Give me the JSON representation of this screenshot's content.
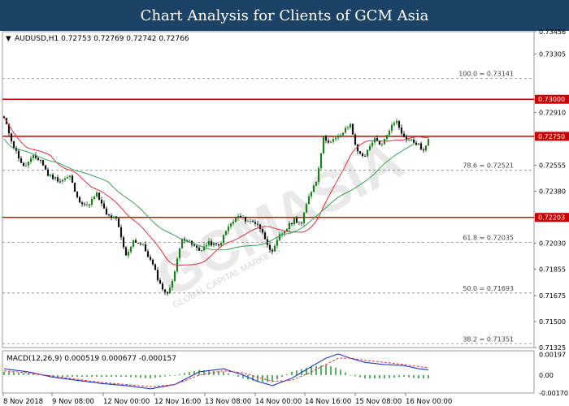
{
  "header": {
    "title": "Chart Analysis for Clients of GCM Asia"
  },
  "colors": {
    "bull": "#1e7d1e",
    "bear": "#111111",
    "ma_fast": "#e0303e",
    "ma_slow": "#3aa35a",
    "level_line": "#cc0000",
    "fib_line": "#888888",
    "macd_line": "#1f33d6",
    "signal_line": "#e0303e",
    "histogram": "#2e9e3a"
  },
  "watermark": {
    "text": "GCMASIA",
    "sub": "GLOBAL CAPITAL MARKETS"
  },
  "chart_data": {
    "type": "candlestick",
    "title": "AUDUSD,H1  0.72753 0.72769 0.72742 0.72766",
    "price_axis": {
      "ylim": [
        0.71325,
        0.73456
      ],
      "ticks": [
        "0.73456",
        "0.73305",
        "0.73000",
        "0.72910",
        "0.72750",
        "0.72555",
        "0.72380",
        "0.72203",
        "0.72030",
        "0.71855",
        "0.71675",
        "0.71500",
        "0.71325"
      ]
    },
    "time_labels": [
      "8 Nov 2018",
      "9 Nov 08:00",
      "12 Nov 00:00",
      "12 Nov 16:00",
      "13 Nov 08:00",
      "14 Nov 00:00",
      "14 Nov 16:00",
      "15 Nov 08:00",
      "16 Nov 00:00"
    ],
    "key_levels": [
      {
        "label": "0.73000",
        "value": 0.73
      },
      {
        "label": "0.72750",
        "value": 0.7275
      },
      {
        "label": "0.72203",
        "value": 0.72203
      }
    ],
    "fib_levels": [
      {
        "label": "100.0 = 0.73141",
        "value": 0.73141
      },
      {
        "label": "78.6 = 0.72521",
        "value": 0.72521
      },
      {
        "label": "61.8 = 0.72035",
        "value": 0.72035
      },
      {
        "label": "50.0 = 0.71693",
        "value": 0.71693
      },
      {
        "label": "38.2 = 0.71351",
        "value": 0.71351
      }
    ],
    "anchors": [
      [
        0,
        0.7287
      ],
      [
        4,
        0.7268
      ],
      [
        8,
        0.7254
      ],
      [
        12,
        0.7261
      ],
      [
        15,
        0.7259
      ],
      [
        18,
        0.7249
      ],
      [
        23,
        0.7245
      ],
      [
        27,
        0.7248
      ],
      [
        30,
        0.7233
      ],
      [
        34,
        0.7228
      ],
      [
        38,
        0.7236
      ],
      [
        42,
        0.7222
      ],
      [
        46,
        0.7219
      ],
      [
        50,
        0.7194
      ],
      [
        53,
        0.7205
      ],
      [
        57,
        0.7201
      ],
      [
        61,
        0.7188
      ],
      [
        64,
        0.7175
      ],
      [
        67,
        0.7168
      ],
      [
        70,
        0.7184
      ],
      [
        73,
        0.7207
      ],
      [
        77,
        0.7202
      ],
      [
        80,
        0.7198
      ],
      [
        84,
        0.7203
      ],
      [
        88,
        0.7201
      ],
      [
        92,
        0.7214
      ],
      [
        96,
        0.7221
      ],
      [
        100,
        0.7218
      ],
      [
        104,
        0.7216
      ],
      [
        108,
        0.7203
      ],
      [
        110,
        0.7196
      ],
      [
        113,
        0.7208
      ],
      [
        116,
        0.7213
      ],
      [
        119,
        0.7219
      ],
      [
        122,
        0.7216
      ],
      [
        125,
        0.7235
      ],
      [
        128,
        0.7245
      ],
      [
        131,
        0.7274
      ],
      [
        134,
        0.7271
      ],
      [
        138,
        0.7276
      ],
      [
        142,
        0.7283
      ],
      [
        145,
        0.7264
      ],
      [
        148,
        0.7262
      ],
      [
        152,
        0.7273
      ],
      [
        155,
        0.7269
      ],
      [
        158,
        0.728
      ],
      [
        161,
        0.7286
      ],
      [
        164,
        0.7274
      ],
      [
        167,
        0.7272
      ],
      [
        170,
        0.7269
      ],
      [
        172,
        0.7265
      ],
      [
        174,
        0.7272
      ]
    ],
    "macd": {
      "label": "MACD(12,26,9)  0.000519  0.000677  -0.000157",
      "ylim": [
        -0.0017,
        0.0023
      ],
      "ticks": [
        "0.00197",
        "0.00",
        "-0.00170"
      ],
      "line": [
        [
          0,
          0.0006
        ],
        [
          10,
          0.0003
        ],
        [
          20,
          -0.0002
        ],
        [
          30,
          -0.0005
        ],
        [
          40,
          -0.0008
        ],
        [
          50,
          -0.001
        ],
        [
          60,
          -0.0013
        ],
        [
          70,
          -0.0009
        ],
        [
          80,
          0.0003
        ],
        [
          90,
          0.0006
        ],
        [
          98,
          0.0
        ],
        [
          104,
          -0.0006
        ],
        [
          110,
          -0.001
        ],
        [
          118,
          -0.0003
        ],
        [
          126,
          0.0008
        ],
        [
          132,
          0.0016
        ],
        [
          137,
          0.002
        ],
        [
          142,
          0.0016
        ],
        [
          148,
          0.0012
        ],
        [
          156,
          0.001
        ],
        [
          164,
          0.0009
        ],
        [
          170,
          0.0006
        ],
        [
          174,
          0.0005
        ]
      ],
      "signal": [
        [
          0,
          0.0004
        ],
        [
          10,
          0.0002
        ],
        [
          20,
          -0.0001
        ],
        [
          30,
          -0.0004
        ],
        [
          40,
          -0.0007
        ],
        [
          50,
          -0.0009
        ],
        [
          60,
          -0.0011
        ],
        [
          70,
          -0.0009
        ],
        [
          80,
          0.0
        ],
        [
          90,
          0.0004
        ],
        [
          98,
          0.0002
        ],
        [
          104,
          -0.0002
        ],
        [
          110,
          -0.0006
        ],
        [
          118,
          -0.0005
        ],
        [
          126,
          0.0003
        ],
        [
          132,
          0.001
        ],
        [
          137,
          0.0016
        ],
        [
          142,
          0.0016
        ],
        [
          148,
          0.0014
        ],
        [
          156,
          0.0012
        ],
        [
          164,
          0.001
        ],
        [
          170,
          0.0008
        ],
        [
          174,
          0.0007
        ]
      ]
    }
  }
}
